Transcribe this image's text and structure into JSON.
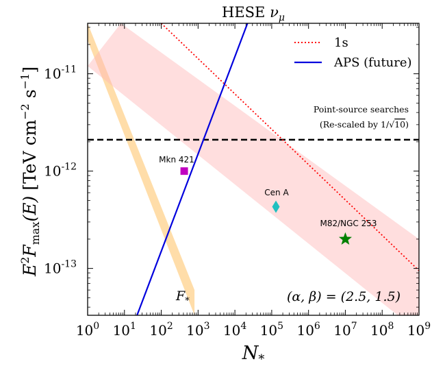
{
  "chart_data": {
    "type": "line",
    "title_main": "HESE ",
    "title_symbol": "ν",
    "title_sub": "μ",
    "xlabel": "N",
    "xlabel_sub": "*",
    "xscale": "log",
    "yscale": "log",
    "xlim": [
      1,
      1000000000.0
    ],
    "ylim": [
      3.3e-14,
      3.3e-11
    ],
    "x_ticks": [
      {
        "base": "10",
        "exp": "0",
        "value": 1
      },
      {
        "base": "10",
        "exp": "1",
        "value": 10
      },
      {
        "base": "10",
        "exp": "2",
        "value": 100
      },
      {
        "base": "10",
        "exp": "3",
        "value": 1000
      },
      {
        "base": "10",
        "exp": "4",
        "value": 10000
      },
      {
        "base": "10",
        "exp": "5",
        "value": 100000
      },
      {
        "base": "10",
        "exp": "6",
        "value": 1000000
      },
      {
        "base": "10",
        "exp": "7",
        "value": 10000000
      },
      {
        "base": "10",
        "exp": "8",
        "value": 100000000
      },
      {
        "base": "10",
        "exp": "9",
        "value": 1000000000
      }
    ],
    "y_ticks": [
      {
        "base": "10",
        "exp": "-11",
        "value": 1e-11
      },
      {
        "base": "10",
        "exp": "-12",
        "value": 1e-12
      },
      {
        "base": "10",
        "exp": "-13",
        "value": 1e-13
      }
    ],
    "ylabel_parts": {
      "e": "E",
      "e_exp": "2",
      "f": "F",
      "f_sub": "max",
      "arg": "(E)",
      "unit_open": "[TeV cm",
      "cm_exp": "−2",
      "s": " s",
      "s_exp": "−1",
      "unit_close": "]"
    },
    "legend": {
      "placement": "top-right",
      "entries": [
        {
          "label": "1s",
          "style": "dotted",
          "color": "#ff0000"
        },
        {
          "label": "APS (future)",
          "style": "solid",
          "color": "#0000dd"
        }
      ]
    },
    "series": [
      {
        "name": "1s",
        "style": "dotted",
        "color": "#ff0000",
        "x": [
          100.0,
          1000000000.0
        ],
        "y": [
          3.3e-11,
          9.5e-14
        ]
      },
      {
        "name": "APS (future)",
        "style": "solid",
        "color": "#0000dd",
        "x": [
          22,
          22000.0
        ],
        "y": [
          3.3e-14,
          3.3e-11
        ]
      }
    ],
    "bands": [
      {
        "label": "F",
        "label_sub": "*",
        "color": "#ffd28c",
        "opacity": 0.75,
        "lower": {
          "x": [
            1,
            800
          ],
          "y": [
            2.2e-11,
            3.3e-14
          ]
        },
        "upper": {
          "x": [
            1,
            800
          ],
          "y": [
            3.3e-11,
            6e-14
          ]
        }
      },
      {
        "label": "",
        "color": "#ffb5b5",
        "opacity": 0.45,
        "lower": {
          "x": [
            1,
            1000000000.0
          ],
          "y": [
            1.2e-11,
            2.2e-14
          ]
        },
        "upper": {
          "x": [
            8,
            1000000000.0
          ],
          "y": [
            3.3e-11,
            2e-13
          ]
        }
      }
    ],
    "hline": {
      "y": 2.1e-12,
      "style": "dashed",
      "color": "#000000",
      "label_line1": "Point-source searches",
      "label_line2_prefix": "(Re-scaled by 1/",
      "label_line2_sqrt": "10",
      "label_line2_suffix": ")"
    },
    "points": [
      {
        "name": "Mkn 421",
        "x": 420,
        "y": 1e-12,
        "marker": "square",
        "color": "#c000c0"
      },
      {
        "name": "Cen A",
        "x": 130000.0,
        "y": 4.3e-13,
        "marker": "diamond",
        "color": "#20c0c0"
      },
      {
        "name": "M82/NGC 253",
        "x": 10000000.0,
        "y": 2e-13,
        "marker": "star",
        "color": "#008000"
      }
    ],
    "annotation": "(α, β) = (2.5, 1.5)"
  }
}
